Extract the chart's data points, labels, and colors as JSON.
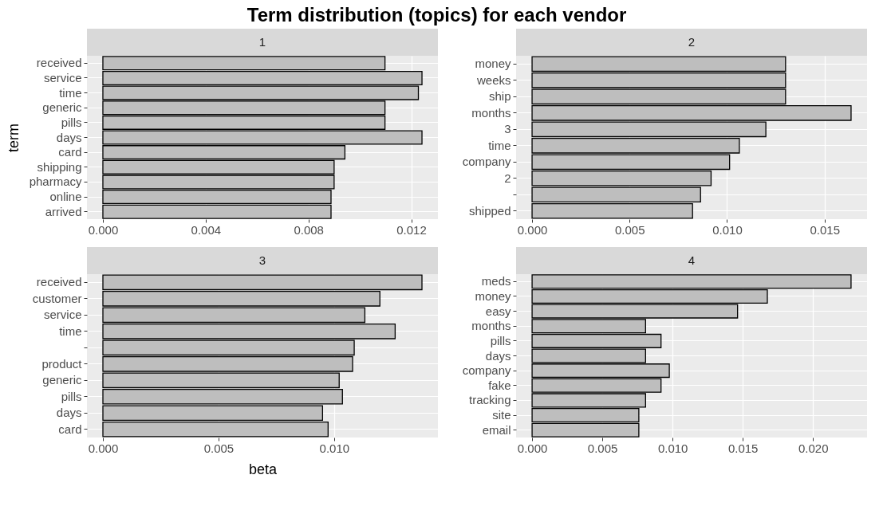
{
  "chart_data": [
    {
      "type": "bar",
      "orientation": "horizontal",
      "title": "Term distribution (topics) for each vendor",
      "subtitle": "1",
      "ylabel": "term",
      "categories": [
        "received",
        "service",
        "time",
        "generic",
        "pills",
        "days",
        "card",
        "shipping",
        "pharmacy",
        "online",
        "arrived"
      ],
      "values": [
        0.01098,
        0.01242,
        0.01228,
        0.01098,
        0.01098,
        0.01242,
        0.00942,
        0.009,
        0.009,
        0.00888,
        0.00888
      ],
      "color": "#bebebe",
      "xlim": [
        -0.00062,
        0.01304
      ],
      "xticks": [
        {
          "value": 0,
          "label": "0.000"
        },
        {
          "value": 0.004,
          "label": "0.004"
        },
        {
          "value": 0.008,
          "label": "0.008"
        },
        {
          "value": 0.012,
          "label": "0.012"
        }
      ],
      "grid": true
    },
    {
      "type": "bar",
      "orientation": "horizontal",
      "subtitle": "2",
      "categories": [
        "money",
        "weeks",
        "ship",
        "months",
        "3",
        "time",
        "company",
        "2",
        null,
        "shipped"
      ],
      "values": [
        0.013,
        0.013,
        0.013,
        0.01636,
        0.01199,
        0.01063,
        0.01013,
        0.00918,
        0.00864,
        0.00823
      ],
      "color": "#bebebe",
      "xlim": [
        -0.00082,
        0.01718
      ],
      "xticks": [
        {
          "value": 0,
          "label": "0.000"
        },
        {
          "value": 0.005,
          "label": "0.005"
        },
        {
          "value": 0.01,
          "label": "0.010"
        },
        {
          "value": 0.015,
          "label": "0.015"
        }
      ],
      "grid": true
    },
    {
      "type": "bar",
      "orientation": "horizontal",
      "subtitle": "3",
      "xlabel": "beta",
      "categories": [
        "received",
        "customer",
        "service",
        "time",
        null,
        "product",
        "generic",
        "pills",
        "days",
        "card"
      ],
      "values": [
        0.0138,
        0.01198,
        0.01133,
        0.01264,
        0.01087,
        0.0108,
        0.01022,
        0.01036,
        0.0095,
        0.00974
      ],
      "color": "#bebebe",
      "xlim": [
        -0.00069,
        0.01449
      ],
      "xticks": [
        {
          "value": 0,
          "label": "0.000"
        },
        {
          "value": 0.005,
          "label": "0.005"
        },
        {
          "value": 0.01,
          "label": "0.010"
        }
      ],
      "grid": true
    },
    {
      "type": "bar",
      "orientation": "horizontal",
      "subtitle": "4",
      "categories": [
        "meds",
        "money",
        "easy",
        "months",
        "pills",
        "days",
        "company",
        "fake",
        "tracking",
        "site",
        "email"
      ],
      "values": [
        0.02271,
        0.01675,
        0.01463,
        0.00808,
        0.00918,
        0.00808,
        0.00977,
        0.00918,
        0.00808,
        0.0076,
        0.0076
      ],
      "color": "#bebebe",
      "xlim": [
        -0.00114,
        0.02385
      ],
      "xticks": [
        {
          "value": 0,
          "label": "0.000"
        },
        {
          "value": 0.005,
          "label": "0.005"
        },
        {
          "value": 0.01,
          "label": "0.010"
        },
        {
          "value": 0.015,
          "label": "0.015"
        },
        {
          "value": 0.02,
          "label": "0.020"
        }
      ],
      "grid": true
    }
  ]
}
